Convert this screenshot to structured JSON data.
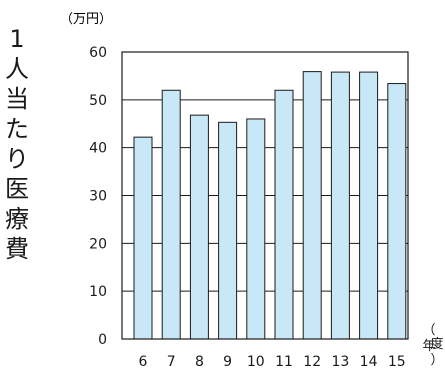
{
  "chart_data": {
    "type": "bar",
    "title": "",
    "ylabel": "1人当たり医療費",
    "y_unit": "（万円）",
    "xlabel": "（年度）",
    "categories": [
      "6",
      "7",
      "8",
      "9",
      "10",
      "11",
      "12",
      "13",
      "14",
      "15"
    ],
    "series": [
      {
        "values": [
          42.2,
          52.0,
          46.8,
          45.3,
          46.0,
          52.0,
          55.9,
          55.8,
          55.8,
          53.4
        ]
      }
    ],
    "ylim": [
      0,
      60
    ],
    "yticks": [
      0,
      10,
      20,
      30,
      40,
      50,
      60
    ],
    "grid": true,
    "colors": {
      "bar_fill": "#c8e8f8",
      "bar_stroke": "#1a1a1a",
      "axis": "#1a1a1a",
      "grid": "#1a1a1a",
      "text": "#1a1a1a"
    }
  }
}
